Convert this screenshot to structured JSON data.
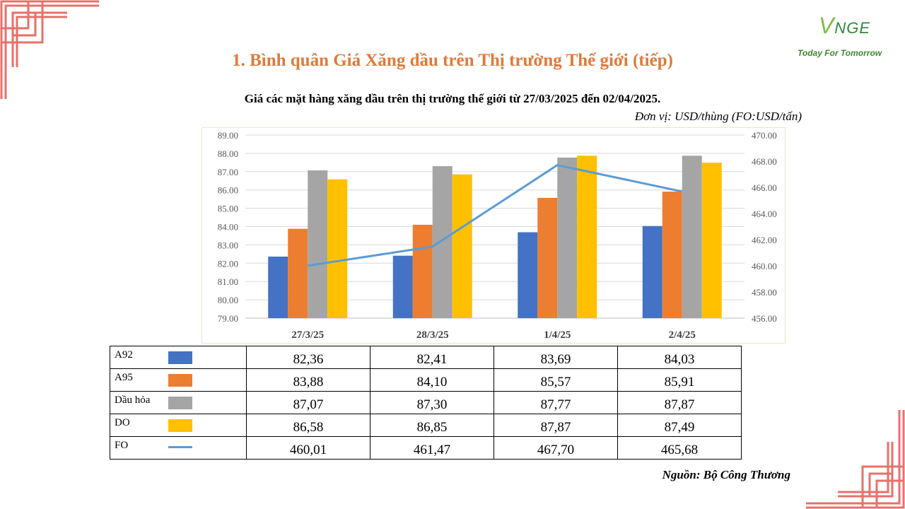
{
  "header": {
    "title": "1. Bình quân Giá Xăng dầu trên Thị trường Thế giới (tiếp)",
    "subtitle": "Giá các mặt hàng xăng dầu trên thị trường thế giới từ 27/03/2025 đến 02/04/2025.",
    "unit": "Đơn vị:  USD/thùng (FO:USD/tấn)"
  },
  "logo": {
    "brand_v": "V",
    "brand_rest": "NGE",
    "tagline": "Today For Tomorrow"
  },
  "source": "Nguồn: Bộ Công Thương",
  "colors": {
    "title": "#e07a3a",
    "frame": "#e8706a",
    "grid": "#d9d9d9"
  },
  "chart_data": {
    "type": "bar",
    "categories": [
      "27/3/25",
      "28/3/25",
      "1/4/25",
      "2/4/25"
    ],
    "ylim": [
      79,
      89
    ],
    "y_ticks": [
      "79.00",
      "80.00",
      "81.00",
      "82.00",
      "83.00",
      "84.00",
      "85.00",
      "86.00",
      "87.00",
      "88.00",
      "89.00"
    ],
    "y2lim": [
      456,
      470
    ],
    "y2_ticks": [
      "456.00",
      "458.00",
      "460.00",
      "462.00",
      "464.00",
      "466.00",
      "468.00",
      "470.00"
    ],
    "grid": true,
    "series": [
      {
        "name": "A92",
        "type": "bar",
        "color": "#4472c4",
        "values": [
          82.36,
          82.41,
          83.69,
          84.03
        ],
        "labels": [
          "82,36",
          "82,41",
          "83,69",
          "84,03"
        ]
      },
      {
        "name": "A95",
        "type": "bar",
        "color": "#ed7d31",
        "values": [
          83.88,
          84.1,
          85.57,
          85.91
        ],
        "labels": [
          "83,88",
          "84,10",
          "85,57",
          "85,91"
        ]
      },
      {
        "name": "Dầu hỏa",
        "type": "bar",
        "color": "#a5a5a5",
        "values": [
          87.07,
          87.3,
          87.77,
          87.87
        ],
        "labels": [
          "87,07",
          "87,30",
          "87,77",
          "87,87"
        ]
      },
      {
        "name": "DO",
        "type": "bar",
        "color": "#ffc000",
        "values": [
          86.58,
          86.85,
          87.87,
          87.49
        ],
        "labels": [
          "86,58",
          "86,85",
          "87,87",
          "87,49"
        ]
      },
      {
        "name": "FO",
        "type": "line",
        "axis": "secondary",
        "color": "#5b9bd5",
        "values": [
          460.01,
          461.47,
          467.7,
          465.68
        ],
        "labels": [
          "460,01",
          "461,47",
          "467,70",
          "465,68"
        ]
      }
    ]
  }
}
